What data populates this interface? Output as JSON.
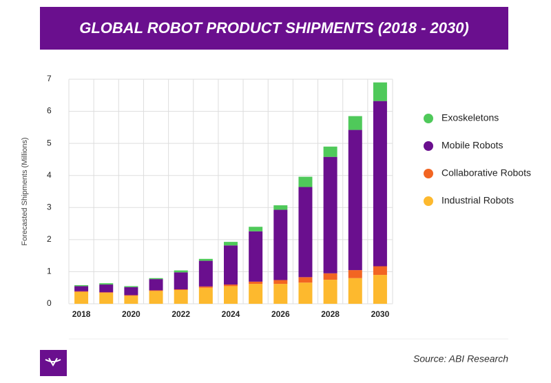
{
  "chart_data": {
    "type": "stacked-bar",
    "title": "GLOBAL ROBOT PRODUCT SHIPMENTS (2018 - 2030)",
    "y_label": "Forecasted Shipments (Millions)",
    "categories": [
      "2018",
      null,
      "2020",
      null,
      "2022",
      null,
      "2024",
      null,
      "2026",
      null,
      "2028",
      null,
      "2030"
    ],
    "series": [
      {
        "name": "Industrial Robots",
        "color": "#fdb92e",
        "values": [
          0.37,
          0.34,
          0.25,
          0.4,
          0.43,
          0.5,
          0.55,
          0.62,
          0.62,
          0.66,
          0.75,
          0.8,
          0.9
        ]
      },
      {
        "name": "Collaborative Robots",
        "color": "#f26522",
        "values": [
          0.02,
          0.02,
          0.02,
          0.02,
          0.02,
          0.04,
          0.05,
          0.07,
          0.12,
          0.17,
          0.2,
          0.25,
          0.27
        ]
      },
      {
        "name": "Mobile Robots",
        "color": "#6a0f8e",
        "values": [
          0.16,
          0.24,
          0.25,
          0.35,
          0.53,
          0.8,
          1.22,
          1.57,
          2.19,
          2.81,
          3.63,
          4.37,
          5.15
        ]
      },
      {
        "name": "Exoskeletons",
        "color": "#4fc95a",
        "values": [
          0.03,
          0.04,
          0.03,
          0.03,
          0.06,
          0.06,
          0.11,
          0.14,
          0.14,
          0.32,
          0.32,
          0.43,
          0.58
        ]
      }
    ],
    "ylim": [
      0,
      7
    ],
    "yticks": [
      0,
      1,
      2,
      3,
      4,
      5,
      6,
      7
    ],
    "grid": true,
    "legend": "right",
    "source": "Source: ABI Research"
  }
}
